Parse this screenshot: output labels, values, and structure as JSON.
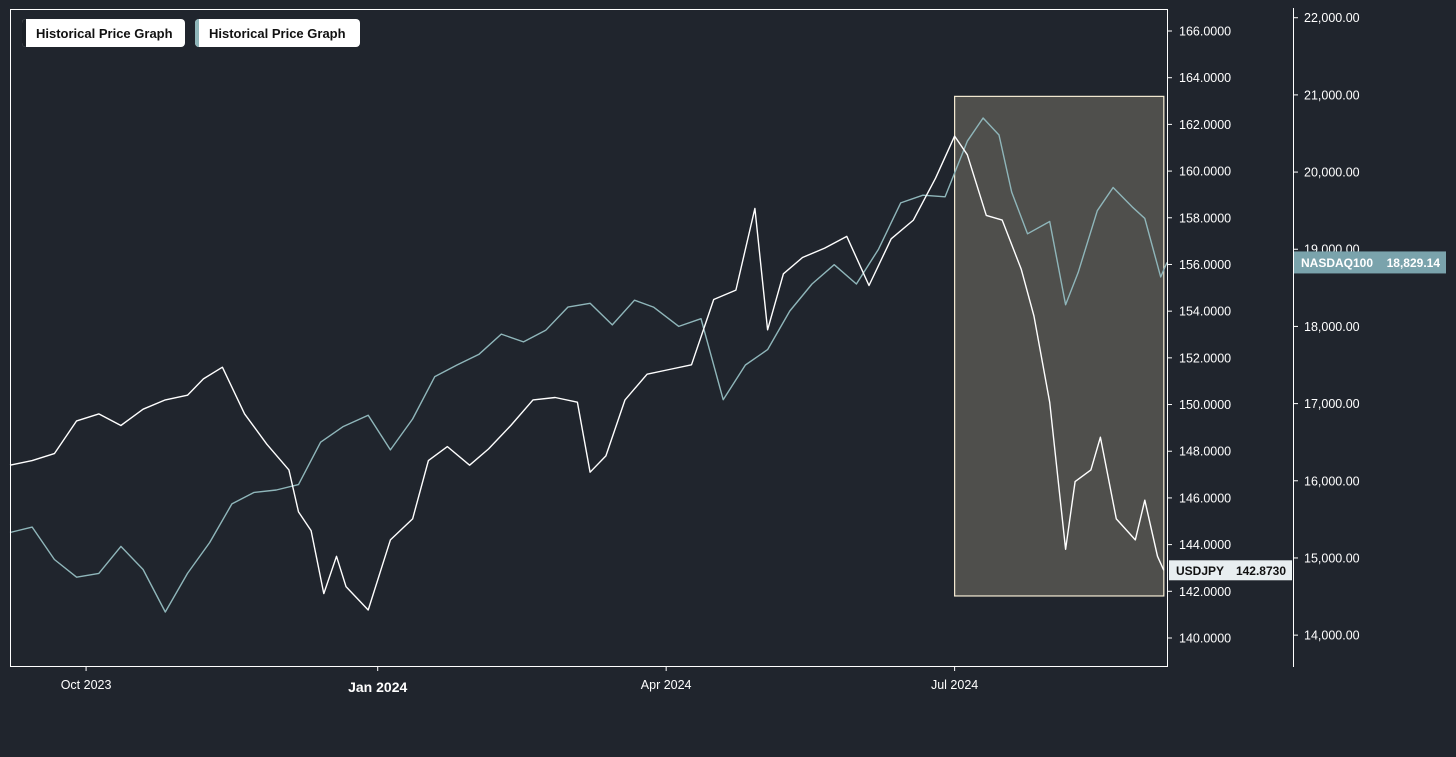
{
  "legend": [
    {
      "label": "Historical Price Graph",
      "color": "#1b2027"
    },
    {
      "label": "Historical Price Graph",
      "color": "#8fb6ba"
    }
  ],
  "colors": {
    "background": "#20252d",
    "usdjpy_line": "#ffffff",
    "nasdaq_line": "#8fb6ba",
    "highlight_fill": "#4f4f4c",
    "highlight_border": "#f5ecd4",
    "usdjpy_badge": "#e8eef0",
    "nasdaq_badge": "#7aa3ac"
  },
  "chart_data": {
    "type": "line",
    "x_ticks": [
      "Oct 2023",
      "Jan 2024",
      "Apr 2024",
      "Jul 2024"
    ],
    "x_tick_dates": [
      "2023-10-01",
      "2024-01-01",
      "2024-04-01",
      "2024-07-01"
    ],
    "xlim": [
      "2023-09-07",
      "2024-09-06"
    ],
    "y_left": {
      "label": "",
      "ylim": [
        138.8,
        166.9
      ],
      "ticks": [
        "140.0000",
        "142.0000",
        "144.0000",
        "146.0000",
        "148.0000",
        "150.0000",
        "152.0000",
        "154.0000",
        "156.0000",
        "158.0000",
        "160.0000",
        "162.0000",
        "164.0000",
        "166.0000"
      ]
    },
    "y_right": {
      "label": "",
      "ylim": [
        13600,
        22100
      ],
      "ticks": [
        "14,000.00",
        "15,000.00",
        "16,000.00",
        "17,000.00",
        "18,000.00",
        "19,000.00",
        "20,000.00",
        "21,000.00",
        "22,000.00"
      ]
    },
    "highlight_range": {
      "x": [
        "2024-07-01",
        "2024-09-05"
      ],
      "y_left": [
        141.8,
        163.2
      ]
    },
    "series": [
      {
        "name": "USDJPY",
        "axis": "left",
        "last_value_label": "142.8730",
        "points": [
          [
            "2023-09-07",
            147.4
          ],
          [
            "2023-09-14",
            147.6
          ],
          [
            "2023-09-21",
            147.9
          ],
          [
            "2023-09-28",
            149.3
          ],
          [
            "2023-10-05",
            149.6
          ],
          [
            "2023-10-12",
            149.1
          ],
          [
            "2023-10-19",
            149.8
          ],
          [
            "2023-10-26",
            150.2
          ],
          [
            "2023-11-02",
            150.4
          ],
          [
            "2023-11-07",
            151.1
          ],
          [
            "2023-11-13",
            151.6
          ],
          [
            "2023-11-20",
            149.6
          ],
          [
            "2023-11-27",
            148.3
          ],
          [
            "2023-12-04",
            147.2
          ],
          [
            "2023-12-07",
            145.4
          ],
          [
            "2023-12-11",
            144.6
          ],
          [
            "2023-12-15",
            141.9
          ],
          [
            "2023-12-19",
            143.5
          ],
          [
            "2023-12-22",
            142.2
          ],
          [
            "2023-12-29",
            141.2
          ],
          [
            "2024-01-05",
            144.2
          ],
          [
            "2024-01-12",
            145.1
          ],
          [
            "2024-01-17",
            147.6
          ],
          [
            "2024-01-23",
            148.2
          ],
          [
            "2024-01-30",
            147.4
          ],
          [
            "2024-02-05",
            148.1
          ],
          [
            "2024-02-12",
            149.1
          ],
          [
            "2024-02-19",
            150.2
          ],
          [
            "2024-02-26",
            150.3
          ],
          [
            "2024-03-04",
            150.1
          ],
          [
            "2024-03-08",
            147.1
          ],
          [
            "2024-03-13",
            147.8
          ],
          [
            "2024-03-19",
            150.2
          ],
          [
            "2024-03-26",
            151.3
          ],
          [
            "2024-04-02",
            151.5
          ],
          [
            "2024-04-09",
            151.7
          ],
          [
            "2024-04-16",
            154.5
          ],
          [
            "2024-04-23",
            154.9
          ],
          [
            "2024-04-29",
            158.4
          ],
          [
            "2024-05-03",
            153.2
          ],
          [
            "2024-05-08",
            155.6
          ],
          [
            "2024-05-14",
            156.3
          ],
          [
            "2024-05-21",
            156.7
          ],
          [
            "2024-05-28",
            157.2
          ],
          [
            "2024-06-04",
            155.1
          ],
          [
            "2024-06-11",
            157.1
          ],
          [
            "2024-06-18",
            157.9
          ],
          [
            "2024-06-25",
            159.7
          ],
          [
            "2024-07-01",
            161.5
          ],
          [
            "2024-07-05",
            160.7
          ],
          [
            "2024-07-11",
            158.1
          ],
          [
            "2024-07-16",
            157.9
          ],
          [
            "2024-07-22",
            155.8
          ],
          [
            "2024-07-26",
            153.8
          ],
          [
            "2024-07-31",
            150.1
          ],
          [
            "2024-08-05",
            143.8
          ],
          [
            "2024-08-08",
            146.7
          ],
          [
            "2024-08-13",
            147.2
          ],
          [
            "2024-08-16",
            148.6
          ],
          [
            "2024-08-21",
            145.1
          ],
          [
            "2024-08-27",
            144.2
          ],
          [
            "2024-08-30",
            145.9
          ],
          [
            "2024-09-03",
            143.5
          ],
          [
            "2024-09-05",
            142.9
          ]
        ]
      },
      {
        "name": "NASDAQ100",
        "axis": "right",
        "last_value_label": "18,829.14",
        "points": [
          [
            "2023-09-07",
            15330
          ],
          [
            "2023-09-14",
            15400
          ],
          [
            "2023-09-21",
            14980
          ],
          [
            "2023-09-28",
            14750
          ],
          [
            "2023-10-05",
            14800
          ],
          [
            "2023-10-12",
            15150
          ],
          [
            "2023-10-19",
            14850
          ],
          [
            "2023-10-26",
            14300
          ],
          [
            "2023-11-02",
            14800
          ],
          [
            "2023-11-09",
            15200
          ],
          [
            "2023-11-16",
            15700
          ],
          [
            "2023-11-23",
            15850
          ],
          [
            "2023-11-30",
            15880
          ],
          [
            "2023-12-07",
            15950
          ],
          [
            "2023-12-14",
            16500
          ],
          [
            "2023-12-21",
            16700
          ],
          [
            "2023-12-29",
            16850
          ],
          [
            "2024-01-05",
            16400
          ],
          [
            "2024-01-12",
            16800
          ],
          [
            "2024-01-19",
            17350
          ],
          [
            "2024-01-26",
            17500
          ],
          [
            "2024-02-02",
            17640
          ],
          [
            "2024-02-09",
            17900
          ],
          [
            "2024-02-16",
            17800
          ],
          [
            "2024-02-23",
            17950
          ],
          [
            "2024-03-01",
            18250
          ],
          [
            "2024-03-08",
            18300
          ],
          [
            "2024-03-15",
            18020
          ],
          [
            "2024-03-22",
            18340
          ],
          [
            "2024-03-28",
            18250
          ],
          [
            "2024-04-05",
            18000
          ],
          [
            "2024-04-12",
            18100
          ],
          [
            "2024-04-19",
            17050
          ],
          [
            "2024-04-26",
            17500
          ],
          [
            "2024-05-03",
            17700
          ],
          [
            "2024-05-10",
            18200
          ],
          [
            "2024-05-17",
            18550
          ],
          [
            "2024-05-24",
            18800
          ],
          [
            "2024-05-31",
            18550
          ],
          [
            "2024-06-07",
            19000
          ],
          [
            "2024-06-14",
            19600
          ],
          [
            "2024-06-21",
            19700
          ],
          [
            "2024-06-28",
            19680
          ],
          [
            "2024-07-05",
            20400
          ],
          [
            "2024-07-10",
            20700
          ],
          [
            "2024-07-15",
            20480
          ],
          [
            "2024-07-19",
            19740
          ],
          [
            "2024-07-24",
            19200
          ],
          [
            "2024-07-31",
            19360
          ],
          [
            "2024-08-05",
            18280
          ],
          [
            "2024-08-09",
            18700
          ],
          [
            "2024-08-15",
            19500
          ],
          [
            "2024-08-20",
            19800
          ],
          [
            "2024-08-26",
            19550
          ],
          [
            "2024-08-30",
            19400
          ],
          [
            "2024-09-04",
            18640
          ],
          [
            "2024-09-06",
            18829
          ]
        ]
      }
    ]
  }
}
